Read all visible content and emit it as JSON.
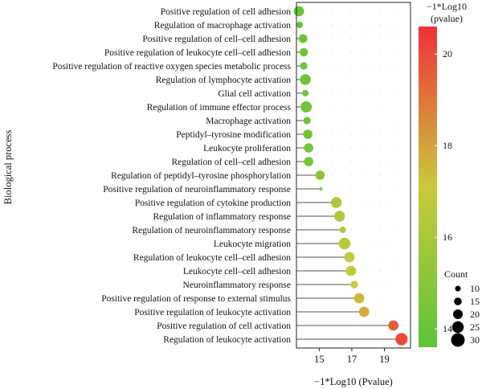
{
  "chart_data": {
    "type": "scatter",
    "subtype": "lollipop",
    "xlabel": "−1*Log10 (Pvalue)",
    "ylabel": "Biological process",
    "xlim": [
      13.6,
      20.6
    ],
    "xticks": [
      15,
      17,
      19
    ],
    "categories": [
      "Positive regulation of cell adhesion",
      "Regulation of macrophage activation",
      "Positive regulation of cell–cell adhesion",
      "Positive regulation of leukocyte cell–cell adhesion",
      "Positive regulation of reactive oxygen species metabolic process",
      "Regulation of lymphocyte activation",
      "Glial cell activation",
      "Regulation of immune effector process",
      "Macrophage activation",
      "Peptidyl–tyrosine modification",
      "Leukocyte proliferation",
      "Regulation of cell–cell adhesion",
      "Regulation of peptidyl–tyrosine phosphorylation",
      "Positive regulation of neuroinflammatory response",
      "Positive regulation of cytokine production",
      "Regulation of inflammatory response",
      "Regulation of neuroinflammatory response",
      "Leukocyte migration",
      "Regulation of leukocyte cell–cell adhesion",
      "Leukocyte cell–cell adhesion",
      "Neuroinflammatory response",
      "Positive regulation of response to external stimulus",
      "Positive regulation of leukocyte activation",
      "Positive regulation of cell activation",
      "Regulation of leukocyte activation"
    ],
    "values": [
      13.75,
      13.8,
      14.0,
      14.05,
      14.05,
      14.15,
      14.15,
      14.2,
      14.25,
      14.3,
      14.35,
      14.35,
      15.05,
      15.1,
      16.05,
      16.25,
      16.45,
      16.55,
      16.85,
      16.95,
      17.15,
      17.45,
      17.75,
      19.55,
      20.05
    ],
    "counts": [
      17,
      9,
      14,
      13,
      11,
      18,
      9,
      19,
      11,
      15,
      15,
      15,
      15,
      3,
      18,
      18,
      9,
      20,
      17,
      17,
      11,
      17,
      17,
      17,
      21
    ],
    "color_scale": {
      "title_line1": "−1*Log10",
      "title_line2": "(pvalue)",
      "min": 13.6,
      "max": 20.6,
      "ticks": [
        14,
        16,
        18,
        20
      ],
      "low_color": "#5cc43a",
      "mid_color": "#c9c93b",
      "high_color": "#f0303a"
    },
    "size_legend": {
      "title": "Count",
      "values": [
        10,
        15,
        20,
        25,
        30
      ]
    },
    "grid": "dotted",
    "legend_position": "right"
  }
}
